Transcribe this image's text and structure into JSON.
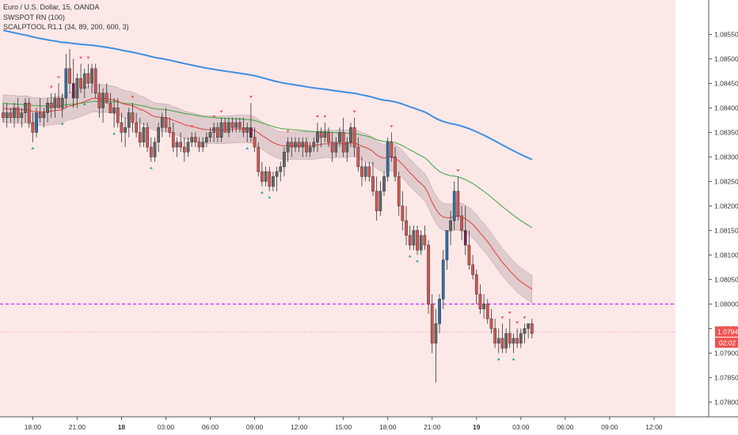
{
  "legend": {
    "symbol": "Euro / U.S. Dollar, 15, OANDA",
    "ind1": "SWSPOT RN (100)",
    "ind2": "SCALPTOOL R1.1 (34, 89, 200, 600, 3)"
  },
  "colors": {
    "background": "#fde8e8",
    "up_candle": "#666666",
    "down_candle": "#d9534f",
    "buy_candle": "#2e6ea8",
    "sell_candle": "#7a1f4f",
    "ema_fast": "#e04848",
    "ema_mid": "#4caa4c",
    "ema_slow": "#3d8fe0",
    "band_fill": "#c9b5b8",
    "level_line": "#cc33ff",
    "price_tag": "#ef5350",
    "marker_up": "#26a69a",
    "marker_down": "#ef5350"
  },
  "chart_data": {
    "type": "candlestick",
    "ylim": [
      1.0777,
      1.0862
    ],
    "y_ticks": [
      "1.08550",
      "1.08500",
      "1.08450",
      "1.08400",
      "1.08350",
      "1.08300",
      "1.08250",
      "1.08200",
      "1.08150",
      "1.08100",
      "1.08050",
      "1.08000",
      "1.07950",
      "1.07900",
      "1.07850",
      "1.07800"
    ],
    "x_ticks": [
      {
        "label": "18:00",
        "i": 8
      },
      {
        "label": "21:00",
        "i": 20
      },
      {
        "label": "18",
        "i": 32,
        "day": true
      },
      {
        "label": "03:00",
        "i": 44
      },
      {
        "label": "06:00",
        "i": 56
      },
      {
        "label": "09:00",
        "i": 68
      },
      {
        "label": "12:00",
        "i": 80
      },
      {
        "label": "15:00",
        "i": 92
      },
      {
        "label": "18:00",
        "i": 104
      },
      {
        "label": "21:00",
        "i": 116
      },
      {
        "label": "19",
        "i": 128,
        "day": true
      },
      {
        "label": "03:00",
        "i": 140
      },
      {
        "label": "06:00",
        "i": 152
      },
      {
        "label": "09:00",
        "i": 164
      },
      {
        "label": "12:00",
        "i": 176
      }
    ],
    "level_line": 1.08,
    "last_price": "1.07943",
    "last_price_value": 1.07943,
    "countdown": "02:02",
    "ohlc": [
      [
        1.0839,
        1.0841,
        1.0837,
        1.0838
      ],
      [
        1.0838,
        1.0841,
        1.0836,
        1.0839
      ],
      [
        1.0839,
        1.084,
        1.0837,
        1.0838
      ],
      [
        1.0838,
        1.0841,
        1.0836,
        1.084
      ],
      [
        1.084,
        1.0842,
        1.0837,
        1.0838
      ],
      [
        1.0838,
        1.084,
        1.0836,
        1.0839
      ],
      [
        1.0839,
        1.0842,
        1.0837,
        1.0841
      ],
      [
        1.0841,
        1.0842,
        1.0836,
        1.0837
      ],
      [
        1.0837,
        1.0839,
        1.0833,
        1.0835
      ],
      [
        1.0835,
        1.084,
        1.0834,
        1.0839
      ],
      [
        1.0839,
        1.0842,
        1.0837,
        1.0838
      ],
      [
        1.0838,
        1.084,
        1.0836,
        1.0839
      ],
      [
        1.0839,
        1.0842,
        1.0837,
        1.0841
      ],
      [
        1.0841,
        1.0843,
        1.0838,
        1.084
      ],
      [
        1.084,
        1.0843,
        1.0838,
        1.0842
      ],
      [
        1.0842,
        1.0845,
        1.084,
        1.084
      ],
      [
        1.084,
        1.0843,
        1.0838,
        1.0842
      ],
      [
        1.0842,
        1.0851,
        1.084,
        1.0848
      ],
      [
        1.0848,
        1.0852,
        1.0843,
        1.0845
      ],
      [
        1.0845,
        1.085,
        1.084,
        1.0842
      ],
      [
        1.0842,
        1.0847,
        1.084,
        1.0846
      ],
      [
        1.0846,
        1.0849,
        1.0843,
        1.0844
      ],
      [
        1.0844,
        1.0848,
        1.0842,
        1.0847
      ],
      [
        1.0847,
        1.0849,
        1.0844,
        1.0845
      ],
      [
        1.0845,
        1.0849,
        1.0843,
        1.0848
      ],
      [
        1.0848,
        1.0849,
        1.0842,
        1.0843
      ],
      [
        1.0843,
        1.0845,
        1.0838,
        1.084
      ],
      [
        1.084,
        1.0844,
        1.0837,
        1.0843
      ],
      [
        1.0843,
        1.0845,
        1.0841,
        1.0841
      ],
      [
        1.0841,
        1.0843,
        1.0839,
        1.0839
      ],
      [
        1.0839,
        1.0842,
        1.0836,
        1.084
      ],
      [
        1.084,
        1.0842,
        1.0836,
        1.0837
      ],
      [
        1.0837,
        1.0839,
        1.0833,
        1.0835
      ],
      [
        1.0835,
        1.0838,
        1.0832,
        1.0836
      ],
      [
        1.0836,
        1.084,
        1.0834,
        1.0839
      ],
      [
        1.0839,
        1.0841,
        1.0835,
        1.0837
      ],
      [
        1.0837,
        1.0839,
        1.0834,
        1.0835
      ],
      [
        1.0835,
        1.0838,
        1.0832,
        1.0833
      ],
      [
        1.0833,
        1.0837,
        1.0832,
        1.0836
      ],
      [
        1.0836,
        1.0837,
        1.0831,
        1.0832
      ],
      [
        1.0832,
        1.0834,
        1.0829,
        1.083
      ],
      [
        1.083,
        1.0834,
        1.0829,
        1.0833
      ],
      [
        1.0833,
        1.0837,
        1.0831,
        1.0836
      ],
      [
        1.0836,
        1.0839,
        1.0834,
        1.0838
      ],
      [
        1.0838,
        1.084,
        1.0835,
        1.0836
      ],
      [
        1.0836,
        1.0838,
        1.0834,
        1.0835
      ],
      [
        1.0835,
        1.0837,
        1.0831,
        1.0832
      ],
      [
        1.0832,
        1.0834,
        1.083,
        1.0833
      ],
      [
        1.0833,
        1.0835,
        1.0831,
        1.0832
      ],
      [
        1.0832,
        1.0834,
        1.0829,
        1.0831
      ],
      [
        1.0831,
        1.0834,
        1.083,
        1.0833
      ],
      [
        1.0833,
        1.0835,
        1.0832,
        1.0834
      ],
      [
        1.0834,
        1.0835,
        1.0832,
        1.0833
      ],
      [
        1.0833,
        1.0834,
        1.0831,
        1.0832
      ],
      [
        1.0832,
        1.0834,
        1.0831,
        1.0833
      ],
      [
        1.0833,
        1.0835,
        1.0832,
        1.0834
      ],
      [
        1.0834,
        1.0836,
        1.0833,
        1.0835
      ],
      [
        1.0835,
        1.0837,
        1.0833,
        1.0836
      ],
      [
        1.0836,
        1.0837,
        1.0833,
        1.0834
      ],
      [
        1.0834,
        1.0838,
        1.0833,
        1.0837
      ],
      [
        1.0837,
        1.0838,
        1.0835,
        1.0835
      ],
      [
        1.0835,
        1.0838,
        1.0834,
        1.0837
      ],
      [
        1.0837,
        1.0838,
        1.0835,
        1.0836
      ],
      [
        1.0836,
        1.0838,
        1.0835,
        1.0837
      ],
      [
        1.0837,
        1.0838,
        1.0835,
        1.0836
      ],
      [
        1.0836,
        1.0838,
        1.0834,
        1.0835
      ],
      [
        1.0835,
        1.0837,
        1.0833,
        1.0836
      ],
      [
        1.0836,
        1.0841,
        1.0833,
        1.0834
      ],
      [
        1.0834,
        1.0836,
        1.0831,
        1.0832
      ],
      [
        1.0832,
        1.0833,
        1.0826,
        1.0827
      ],
      [
        1.0827,
        1.0829,
        1.0824,
        1.0825
      ],
      [
        1.0825,
        1.0828,
        1.0824,
        1.0827
      ],
      [
        1.0827,
        1.0828,
        1.0823,
        1.0824
      ],
      [
        1.0824,
        1.0827,
        1.0823,
        1.0826
      ],
      [
        1.0826,
        1.0828,
        1.0823,
        1.0827
      ],
      [
        1.0827,
        1.0829,
        1.0825,
        1.0828
      ],
      [
        1.0828,
        1.0832,
        1.0826,
        1.0831
      ],
      [
        1.0831,
        1.0834,
        1.0829,
        1.0833
      ],
      [
        1.0833,
        1.0834,
        1.083,
        1.0832
      ],
      [
        1.0832,
        1.0834,
        1.0831,
        1.0833
      ],
      [
        1.0833,
        1.0834,
        1.0831,
        1.0832
      ],
      [
        1.0832,
        1.0834,
        1.083,
        1.0833
      ],
      [
        1.0833,
        1.0834,
        1.083,
        1.0831
      ],
      [
        1.0831,
        1.0833,
        1.083,
        1.0832
      ],
      [
        1.0832,
        1.0834,
        1.0831,
        1.0833
      ],
      [
        1.0833,
        1.0837,
        1.0831,
        1.0835
      ],
      [
        1.0835,
        1.0836,
        1.0832,
        1.0834
      ],
      [
        1.0834,
        1.0837,
        1.0833,
        1.0835
      ],
      [
        1.0835,
        1.0836,
        1.0832,
        1.0833
      ],
      [
        1.0833,
        1.0835,
        1.0829,
        1.0831
      ],
      [
        1.0831,
        1.0834,
        1.083,
        1.0833
      ],
      [
        1.0833,
        1.0836,
        1.0832,
        1.0835
      ],
      [
        1.0835,
        1.0838,
        1.083,
        1.0831
      ],
      [
        1.0831,
        1.0834,
        1.0829,
        1.0833
      ],
      [
        1.0833,
        1.0837,
        1.0832,
        1.0836
      ],
      [
        1.0836,
        1.0838,
        1.083,
        1.0832
      ],
      [
        1.0832,
        1.0834,
        1.0827,
        1.0828
      ],
      [
        1.0828,
        1.083,
        1.0824,
        1.0826
      ],
      [
        1.0826,
        1.0829,
        1.0825,
        1.0828
      ],
      [
        1.0828,
        1.0829,
        1.0825,
        1.0826
      ],
      [
        1.0826,
        1.0829,
        1.0822,
        1.0823
      ],
      [
        1.0823,
        1.0826,
        1.0817,
        1.0819
      ],
      [
        1.0819,
        1.0825,
        1.0818,
        1.0823
      ],
      [
        1.0823,
        1.0827,
        1.0822,
        1.0826
      ],
      [
        1.0826,
        1.0834,
        1.0825,
        1.0833
      ],
      [
        1.0833,
        1.0835,
        1.0829,
        1.083
      ],
      [
        1.083,
        1.0832,
        1.0825,
        1.0826
      ],
      [
        1.0826,
        1.0827,
        1.0818,
        1.082
      ],
      [
        1.082,
        1.0823,
        1.0815,
        1.0817
      ],
      [
        1.0817,
        1.082,
        1.0812,
        1.0814
      ],
      [
        1.0814,
        1.0816,
        1.0811,
        1.0812
      ],
      [
        1.0812,
        1.0816,
        1.0811,
        1.0815
      ],
      [
        1.0815,
        1.0816,
        1.081,
        1.0811
      ],
      [
        1.0811,
        1.0815,
        1.081,
        1.0814
      ],
      [
        1.0814,
        1.0816,
        1.0811,
        1.0812
      ],
      [
        1.0812,
        1.0813,
        1.0798,
        1.08
      ],
      [
        1.08,
        1.0802,
        1.079,
        1.0792
      ],
      [
        1.0792,
        1.0799,
        1.0784,
        1.0796
      ],
      [
        1.0796,
        1.0802,
        1.0794,
        1.0801
      ],
      [
        1.0801,
        1.0811,
        1.0799,
        1.0809
      ],
      [
        1.0809,
        1.0815,
        1.0807,
        1.0815
      ],
      [
        1.0815,
        1.0819,
        1.0812,
        1.0817
      ],
      [
        1.0817,
        1.0825,
        1.0815,
        1.0823
      ],
      [
        1.0823,
        1.0826,
        1.0817,
        1.0818
      ],
      [
        1.0818,
        1.082,
        1.0813,
        1.0815
      ],
      [
        1.0815,
        1.082,
        1.081,
        1.0812
      ],
      [
        1.0812,
        1.0815,
        1.0807,
        1.0808
      ],
      [
        1.0808,
        1.081,
        1.0805,
        1.0806
      ],
      [
        1.0806,
        1.0807,
        1.08,
        1.0802
      ],
      [
        1.0802,
        1.0804,
        1.0798,
        1.0799
      ],
      [
        1.0799,
        1.0802,
        1.0797,
        1.08
      ],
      [
        1.08,
        1.0801,
        1.0796,
        1.0797
      ],
      [
        1.0797,
        1.0799,
        1.0794,
        1.0795
      ],
      [
        1.0795,
        1.0797,
        1.0791,
        1.0792
      ],
      [
        1.0792,
        1.0795,
        1.079,
        1.0793
      ],
      [
        1.0793,
        1.0796,
        1.079,
        1.0791
      ],
      [
        1.0791,
        1.0795,
        1.079,
        1.0794
      ],
      [
        1.0794,
        1.0797,
        1.0791,
        1.0792
      ],
      [
        1.0792,
        1.0794,
        1.079,
        1.0793
      ],
      [
        1.0793,
        1.0795,
        1.0791,
        1.0792
      ],
      [
        1.0792,
        1.0795,
        1.0791,
        1.0794
      ],
      [
        1.0794,
        1.0796,
        1.0792,
        1.0795
      ],
      [
        1.0795,
        1.0796,
        1.0793,
        1.0796
      ],
      [
        1.0796,
        1.0797,
        1.0793,
        1.0794
      ]
    ]
  }
}
